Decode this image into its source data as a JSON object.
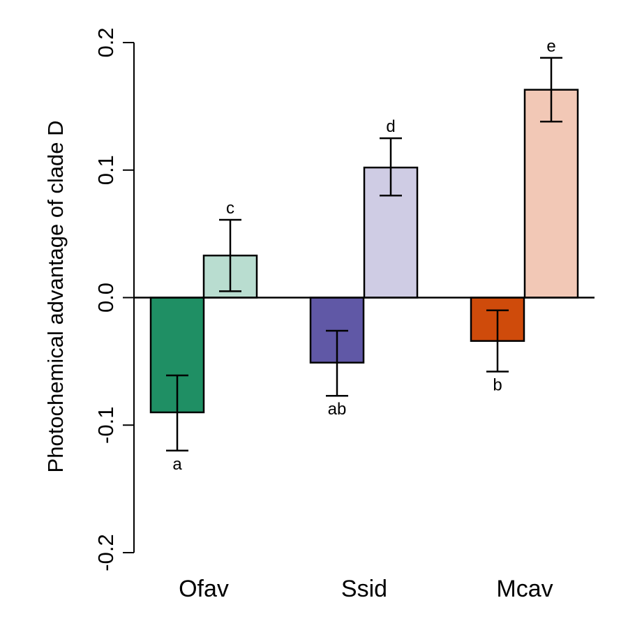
{
  "chart_data": {
    "type": "bar",
    "title": "",
    "xlabel": "",
    "ylabel": "Photochemical advantage of clade D",
    "ylim": [
      -0.2,
      0.2
    ],
    "yticks": [
      -0.2,
      -0.1,
      0.0,
      0.1,
      0.2
    ],
    "ytick_labels": [
      "-0.2",
      "-0.1",
      "0.0",
      "0.1",
      "0.2"
    ],
    "grid": false,
    "legend": "none",
    "categories": [
      "Ofav",
      "Ssid",
      "Mcav"
    ],
    "bars": [
      {
        "category": "Ofav",
        "value": -0.09,
        "err_low": -0.12,
        "err_high": -0.061,
        "letter": "a",
        "color": "#1f8f64"
      },
      {
        "category": "Ofav",
        "value": 0.033,
        "err_low": 0.005,
        "err_high": 0.061,
        "letter": "c",
        "color": "#b9ddd0"
      },
      {
        "category": "Ssid",
        "value": -0.051,
        "err_low": -0.077,
        "err_high": -0.026,
        "letter": "ab",
        "color": "#6058a6"
      },
      {
        "category": "Ssid",
        "value": 0.102,
        "err_low": 0.08,
        "err_high": 0.125,
        "letter": "d",
        "color": "#cfcce4"
      },
      {
        "category": "Mcav",
        "value": -0.034,
        "err_low": -0.058,
        "err_high": -0.01,
        "letter": "b",
        "color": "#cf4b0b"
      },
      {
        "category": "Mcav",
        "value": 0.163,
        "err_low": 0.138,
        "err_high": 0.188,
        "letter": "e",
        "color": "#f2c8b6"
      }
    ]
  }
}
